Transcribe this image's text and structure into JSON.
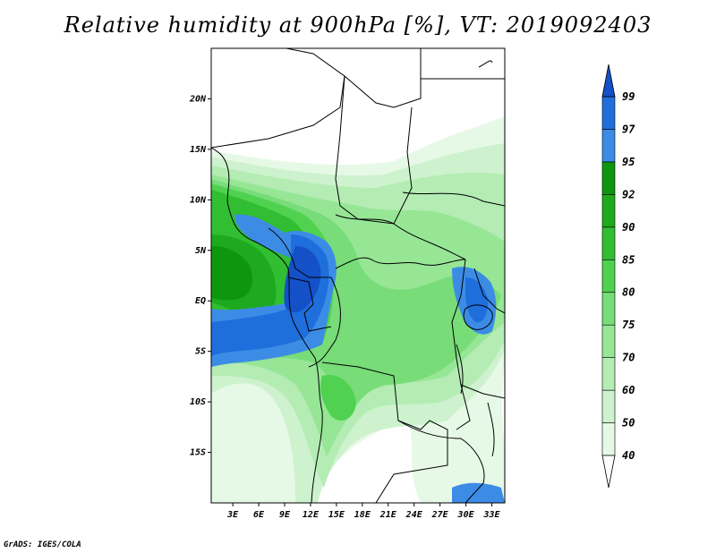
{
  "title": "Relative humidity at 900hPa [%], VT: 2019092403",
  "credit": "GrADS: IGES/COLA",
  "map": {
    "lat_ticks": [
      {
        "value": 20,
        "label": "20N"
      },
      {
        "value": 15,
        "label": "15N"
      },
      {
        "value": 10,
        "label": "10N"
      },
      {
        "value": 5,
        "label": "5N"
      },
      {
        "value": 0,
        "label": "EQ"
      },
      {
        "value": -5,
        "label": "5S"
      },
      {
        "value": -10,
        "label": "10S"
      },
      {
        "value": -15,
        "label": "15S"
      }
    ],
    "lon_ticks": [
      {
        "value": 3,
        "label": "3E"
      },
      {
        "value": 6,
        "label": "6E"
      },
      {
        "value": 9,
        "label": "9E"
      },
      {
        "value": 12,
        "label": "12E"
      },
      {
        "value": 15,
        "label": "15E"
      },
      {
        "value": 18,
        "label": "18E"
      },
      {
        "value": 21,
        "label": "21E"
      },
      {
        "value": 24,
        "label": "24E"
      },
      {
        "value": 27,
        "label": "27E"
      },
      {
        "value": 30,
        "label": "30E"
      },
      {
        "value": 33,
        "label": "33E"
      }
    ],
    "lon_range": [
      0.5,
      34.5
    ],
    "lat_range": [
      -20,
      25
    ]
  },
  "colorbar": {
    "levels": [
      {
        "label": "40",
        "color": "#e6f9e6"
      },
      {
        "label": "50",
        "color": "#cdf2cd"
      },
      {
        "label": "60",
        "color": "#b4ecb4"
      },
      {
        "label": "70",
        "color": "#96e696"
      },
      {
        "label": "75",
        "color": "#78dc78"
      },
      {
        "label": "80",
        "color": "#50d250"
      },
      {
        "label": "85",
        "color": "#32be32"
      },
      {
        "label": "90",
        "color": "#1eaa1e"
      },
      {
        "label": "92",
        "color": "#0f960f"
      },
      {
        "label": "95",
        "color": "#3c8ce6"
      },
      {
        "label": "97",
        "color": "#1e6edc"
      },
      {
        "label": "99",
        "color": "#1450c8"
      }
    ]
  }
}
